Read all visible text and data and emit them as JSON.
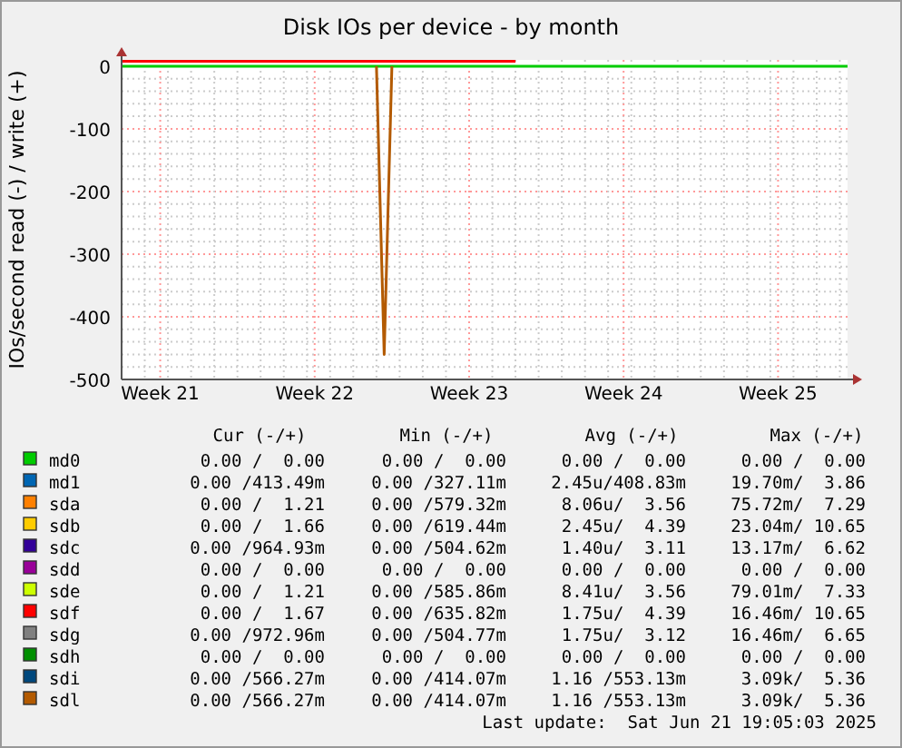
{
  "chart_data": {
    "type": "line",
    "title": "Disk IOs per device - by month",
    "ylabel": "IOs/second read (-) / write (+)",
    "categories": [
      null,
      null,
      null,
      null,
      null,
      "Week 21",
      null,
      null,
      null,
      null,
      null,
      null,
      null,
      null,
      null,
      null,
      null,
      null,
      null,
      null,
      null,
      null,
      null,
      null,
      null,
      "Week 22",
      null,
      null,
      null,
      null,
      null,
      null,
      null,
      null,
      null,
      null,
      null,
      null,
      null,
      null,
      null,
      null,
      null,
      null,
      null,
      "Week 23",
      null,
      null,
      null,
      null,
      null,
      null,
      null,
      null,
      null,
      null,
      null,
      null,
      null,
      null,
      null,
      null,
      null,
      null,
      null,
      "Week 24",
      null,
      null,
      null,
      null,
      null,
      null,
      null,
      null,
      null,
      null,
      null,
      null,
      null,
      null,
      null,
      null,
      null,
      null,
      null,
      "Week 25",
      null,
      null,
      null,
      null,
      null,
      null,
      null,
      null,
      null
    ],
    "ylim": [
      -500,
      10
    ],
    "yticks": [
      -500,
      -400,
      -300,
      -200,
      -100,
      0
    ],
    "grid": true,
    "legend": "bottom",
    "marker": "none",
    "line_style": "solid",
    "series": [
      {
        "name": "md0",
        "color": "#00cc00",
        "values": [
          0,
          0,
          0,
          0,
          0,
          0,
          0,
          0,
          0,
          0,
          0,
          0,
          0,
          0,
          0,
          0,
          0,
          0,
          0,
          0,
          0,
          0,
          0,
          0,
          0,
          0,
          0,
          0,
          0,
          0,
          0,
          0,
          0,
          0,
          0,
          0,
          0,
          0,
          0,
          0,
          0,
          0,
          0,
          0,
          0,
          0,
          0,
          0,
          0,
          0,
          0,
          0,
          0,
          0,
          0,
          0,
          0,
          0,
          0,
          0,
          0,
          0,
          0,
          0,
          0,
          0,
          0,
          0,
          0,
          0,
          0,
          0,
          0,
          0,
          0,
          0,
          0,
          0,
          0,
          0,
          0,
          0,
          0,
          0,
          0,
          0,
          0,
          0,
          0,
          0,
          0,
          0,
          0,
          0,
          0
        ]
      },
      {
        "name": "md1",
        "color": "#0066b3",
        "values": [
          null,
          null,
          null,
          null,
          null,
          null,
          null,
          null,
          null,
          null,
          null,
          null,
          null,
          null,
          null,
          null,
          null,
          null,
          null,
          null,
          null,
          null,
          null,
          null,
          null,
          null,
          null,
          null,
          null,
          null,
          null,
          null,
          null,
          null,
          null,
          null,
          null,
          null,
          null,
          null,
          null,
          null,
          null,
          null,
          null,
          null,
          null,
          null,
          null,
          null,
          null,
          null,
          null,
          null,
          null,
          null,
          null,
          null,
          null,
          null,
          null,
          null,
          null,
          null,
          null,
          null,
          null,
          null,
          null,
          null,
          null,
          null,
          null,
          null,
          null,
          null,
          null,
          null,
          null,
          null,
          null,
          null,
          null,
          null,
          null,
          null,
          null,
          null,
          null,
          null,
          null,
          null,
          null,
          null,
          null
        ]
      },
      {
        "name": "sda",
        "color": "#ff8000",
        "values": [
          null,
          null,
          null,
          null,
          null,
          null,
          null,
          null,
          null,
          null,
          null,
          null,
          null,
          null,
          null,
          null,
          null,
          null,
          null,
          null,
          null,
          null,
          null,
          null,
          null,
          null,
          null,
          null,
          null,
          null,
          null,
          null,
          null,
          null,
          null,
          null,
          null,
          null,
          null,
          null,
          null,
          null,
          null,
          null,
          null,
          null,
          null,
          null,
          null,
          null,
          null,
          null,
          null,
          null,
          null,
          null,
          null,
          null,
          null,
          null,
          null,
          null,
          null,
          null,
          null,
          null,
          null,
          null,
          null,
          null,
          null,
          null,
          null,
          null,
          null,
          null,
          null,
          null,
          null,
          null,
          null,
          null,
          null,
          null,
          null,
          null,
          null,
          null,
          null,
          null,
          null,
          null,
          null,
          null,
          null
        ]
      },
      {
        "name": "sdb",
        "color": "#ffcc00",
        "values": [
          null,
          null,
          null,
          null,
          null,
          null,
          null,
          null,
          null,
          null,
          null,
          null,
          null,
          null,
          null,
          null,
          null,
          null,
          null,
          null,
          null,
          null,
          null,
          null,
          null,
          null,
          null,
          null,
          null,
          null,
          null,
          null,
          null,
          null,
          null,
          null,
          null,
          null,
          null,
          null,
          null,
          null,
          null,
          null,
          null,
          null,
          null,
          null,
          null,
          null,
          null,
          null,
          null,
          null,
          null,
          null,
          null,
          null,
          null,
          null,
          null,
          null,
          null,
          null,
          null,
          null,
          null,
          null,
          null,
          null,
          null,
          null,
          null,
          null,
          null,
          null,
          null,
          null,
          null,
          null,
          null,
          null,
          null,
          null,
          null,
          null,
          null,
          null,
          null,
          null,
          null,
          null,
          null,
          null,
          null
        ]
      },
      {
        "name": "sdc",
        "color": "#330099",
        "values": [
          null,
          null,
          null,
          null,
          null,
          null,
          null,
          null,
          null,
          null,
          null,
          null,
          null,
          null,
          null,
          null,
          null,
          null,
          null,
          null,
          null,
          null,
          null,
          null,
          null,
          null,
          null,
          null,
          null,
          null,
          null,
          null,
          null,
          null,
          null,
          null,
          null,
          null,
          null,
          null,
          null,
          null,
          null,
          null,
          null,
          null,
          null,
          null,
          null,
          null,
          null,
          null,
          null,
          null,
          null,
          null,
          null,
          null,
          null,
          null,
          null,
          null,
          null,
          null,
          null,
          null,
          null,
          null,
          null,
          null,
          null,
          null,
          null,
          null,
          null,
          null,
          null,
          null,
          null,
          null,
          null,
          null,
          null,
          null,
          null,
          null,
          null,
          null,
          null,
          null,
          null,
          null,
          null,
          null,
          null
        ]
      },
      {
        "name": "sdd",
        "color": "#990099",
        "values": [
          null,
          null,
          null,
          null,
          null,
          null,
          null,
          null,
          null,
          null,
          null,
          null,
          null,
          null,
          null,
          null,
          null,
          null,
          null,
          null,
          null,
          null,
          null,
          null,
          null,
          null,
          null,
          null,
          null,
          null,
          null,
          null,
          null,
          null,
          null,
          null,
          null,
          null,
          null,
          null,
          null,
          null,
          null,
          null,
          null,
          null,
          null,
          null,
          null,
          null,
          null,
          null,
          null,
          null,
          null,
          null,
          null,
          null,
          null,
          null,
          null,
          null,
          null,
          null,
          null,
          null,
          null,
          null,
          null,
          null,
          null,
          null,
          null,
          null,
          null,
          null,
          null,
          null,
          null,
          null,
          null,
          null,
          null,
          null,
          null,
          null,
          null,
          null,
          null,
          null,
          null,
          null,
          null,
          null,
          null
        ]
      },
      {
        "name": "sde",
        "color": "#ccff00",
        "values": [
          null,
          null,
          null,
          null,
          null,
          null,
          null,
          null,
          null,
          null,
          null,
          null,
          null,
          null,
          null,
          null,
          null,
          null,
          null,
          null,
          null,
          null,
          null,
          null,
          null,
          null,
          null,
          null,
          null,
          null,
          null,
          null,
          null,
          null,
          null,
          null,
          null,
          null,
          null,
          null,
          null,
          null,
          null,
          null,
          null,
          null,
          null,
          null,
          null,
          null,
          null,
          null,
          null,
          null,
          null,
          null,
          null,
          null,
          null,
          null,
          null,
          null,
          null,
          null,
          null,
          null,
          null,
          null,
          null,
          null,
          null,
          null,
          null,
          null,
          null,
          null,
          null,
          null,
          null,
          null,
          null,
          null,
          null,
          null,
          null,
          null,
          null,
          null,
          null,
          null,
          null,
          null,
          null,
          null,
          null
        ]
      },
      {
        "name": "sdf",
        "color": "#ff0000",
        "values": [
          8,
          8,
          8,
          8,
          8,
          8,
          8,
          8,
          8,
          8,
          8,
          8,
          8,
          8,
          8,
          8,
          8,
          8,
          8,
          8,
          8,
          8,
          8,
          8,
          8,
          8,
          8,
          8,
          8,
          8,
          8,
          8,
          8,
          8,
          8,
          8,
          8,
          8,
          8,
          8,
          8,
          8,
          8,
          8,
          8,
          8,
          8,
          8,
          8,
          8,
          8,
          8,
          null,
          null,
          null,
          null,
          null,
          null,
          null,
          null,
          null,
          null,
          null,
          null,
          null,
          null,
          null,
          null,
          null,
          null,
          null,
          null,
          null,
          null,
          null,
          null,
          null,
          null,
          null,
          null,
          null,
          null,
          null,
          null,
          null,
          null,
          null,
          null,
          null,
          null,
          null,
          null,
          null,
          null,
          null
        ]
      },
      {
        "name": "sdg",
        "color": "#808080",
        "values": [
          null,
          null,
          null,
          null,
          null,
          null,
          null,
          null,
          null,
          null,
          null,
          null,
          null,
          null,
          null,
          null,
          null,
          null,
          null,
          null,
          null,
          null,
          null,
          null,
          null,
          null,
          null,
          null,
          null,
          null,
          null,
          null,
          null,
          null,
          null,
          null,
          null,
          null,
          null,
          null,
          null,
          null,
          null,
          null,
          null,
          null,
          null,
          null,
          null,
          null,
          null,
          null,
          null,
          null,
          null,
          null,
          null,
          null,
          null,
          null,
          null,
          null,
          null,
          null,
          null,
          null,
          null,
          null,
          null,
          null,
          null,
          null,
          null,
          null,
          null,
          null,
          null,
          null,
          null,
          null,
          null,
          null,
          null,
          null,
          null,
          null,
          null,
          null,
          null,
          null,
          null,
          null,
          null,
          null,
          null
        ]
      },
      {
        "name": "sdh",
        "color": "#008f00",
        "values": [
          null,
          null,
          null,
          null,
          null,
          null,
          null,
          null,
          null,
          null,
          null,
          null,
          null,
          null,
          null,
          null,
          null,
          null,
          null,
          null,
          null,
          null,
          null,
          null,
          null,
          null,
          null,
          null,
          null,
          null,
          null,
          null,
          null,
          null,
          null,
          null,
          null,
          null,
          null,
          null,
          null,
          null,
          null,
          null,
          null,
          null,
          null,
          null,
          null,
          null,
          null,
          null,
          null,
          null,
          null,
          null,
          null,
          null,
          null,
          null,
          null,
          null,
          null,
          null,
          null,
          null,
          null,
          null,
          null,
          null,
          null,
          null,
          null,
          null,
          null,
          null,
          null,
          null,
          null,
          null,
          null,
          null,
          null,
          null,
          null,
          null,
          null,
          null,
          null,
          null,
          null,
          null,
          null,
          null,
          null
        ]
      },
      {
        "name": "sdi",
        "color": "#00487d",
        "values": [
          null,
          null,
          null,
          null,
          null,
          null,
          null,
          null,
          null,
          null,
          null,
          null,
          null,
          null,
          null,
          null,
          null,
          null,
          null,
          null,
          null,
          null,
          null,
          null,
          null,
          null,
          null,
          null,
          null,
          null,
          null,
          null,
          null,
          null,
          null,
          null,
          null,
          null,
          null,
          null,
          null,
          null,
          null,
          null,
          null,
          null,
          null,
          null,
          null,
          null,
          null,
          null,
          null,
          null,
          null,
          null,
          null,
          null,
          null,
          null,
          null,
          null,
          null,
          null,
          null,
          null,
          null,
          null,
          null,
          null,
          null,
          null,
          null,
          null,
          null,
          null,
          null,
          null,
          null,
          null,
          null,
          null,
          null,
          null,
          null,
          null,
          null,
          null,
          null,
          null,
          null,
          null,
          null,
          null,
          null
        ]
      },
      {
        "name": "sdl",
        "color": "#b35a00",
        "values": [
          null,
          null,
          null,
          null,
          null,
          null,
          null,
          null,
          null,
          null,
          null,
          null,
          null,
          null,
          null,
          null,
          null,
          null,
          null,
          null,
          null,
          null,
          null,
          null,
          null,
          null,
          null,
          null,
          null,
          null,
          null,
          null,
          null,
          0,
          -460,
          0,
          null,
          null,
          null,
          null,
          null,
          null,
          null,
          null,
          null,
          null,
          null,
          null,
          null,
          null,
          null,
          null,
          null,
          null,
          null,
          null,
          null,
          null,
          null,
          null,
          null,
          null,
          null,
          null,
          null,
          null,
          null,
          null,
          null,
          null,
          null,
          null,
          null,
          null,
          null,
          null,
          null,
          null,
          null,
          null,
          null,
          null,
          null,
          null,
          null,
          null,
          null,
          null,
          null,
          null,
          null,
          null,
          null,
          null,
          null
        ]
      }
    ],
    "annotations": [
      "Cur (-/+)",
      "Min (-/+)",
      "Avg (-/+)",
      "Max (-/+)",
      "0.00 /  0.00",
      "0.00 /  0.00",
      "0.00 /  0.00",
      "0.00 /  0.00",
      "0.00 /413.49m",
      "0.00 /327.11m",
      "2.45u/408.83m",
      "19.70m/  3.86",
      "0.00 /  1.21",
      "0.00 /579.32m",
      "8.06u/  3.56",
      "75.72m/  7.29",
      "0.00 /  1.66",
      "0.00 /619.44m",
      "2.45u/  4.39",
      "23.04m/ 10.65",
      "0.00 /964.93m",
      "0.00 /504.62m",
      "1.40u/  3.11",
      "13.17m/  6.62",
      "0.00 /  0.00",
      "0.00 /  0.00",
      "0.00 /  0.00",
      "0.00 /  0.00",
      "0.00 /  1.21",
      "0.00 /585.86m",
      "8.41u/  3.56",
      "79.01m/  7.33",
      "0.00 /  1.67",
      "0.00 /635.82m",
      "1.75u/  4.39",
      "16.46m/ 10.65",
      "0.00 /972.96m",
      "0.00 /504.77m",
      "1.75u/  3.12",
      "16.46m/  6.65",
      "0.00 /  0.00",
      "0.00 /  0.00",
      "0.00 /  0.00",
      "0.00 /  0.00",
      "0.00 /566.27m",
      "0.00 /414.07m",
      "1.16 /553.13m",
      "3.09k/  5.36",
      "0.00 /566.27m",
      "0.00 /414.07m",
      "1.16 /553.13m",
      "3.09k/  5.36",
      "Last update:  Sat Jun 21 19:05:03 2025"
    ]
  }
}
